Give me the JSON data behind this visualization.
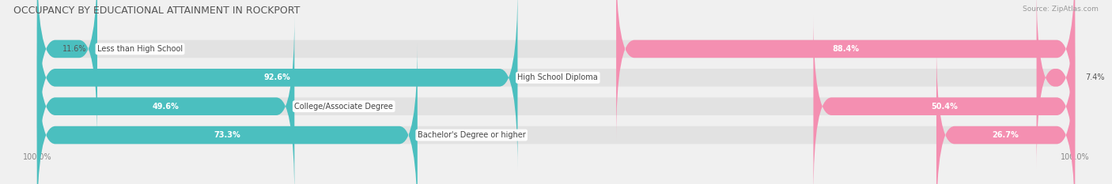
{
  "title": "OCCUPANCY BY EDUCATIONAL ATTAINMENT IN ROCKPORT",
  "source": "Source: ZipAtlas.com",
  "categories": [
    "Less than High School",
    "High School Diploma",
    "College/Associate Degree",
    "Bachelor's Degree or higher"
  ],
  "owner_pct": [
    11.6,
    92.6,
    49.6,
    73.3
  ],
  "renter_pct": [
    88.4,
    7.4,
    50.4,
    26.7
  ],
  "owner_color": "#4BBFBF",
  "renter_color": "#F48FB1",
  "bg_color": "#f0f0f0",
  "bar_bg_color": "#e2e2e2",
  "title_fontsize": 9,
  "label_fontsize": 7.0,
  "pct_fontsize": 7.0,
  "bar_height": 0.62,
  "figsize": [
    14.06,
    2.33
  ],
  "xlim": [
    -105,
    105
  ]
}
